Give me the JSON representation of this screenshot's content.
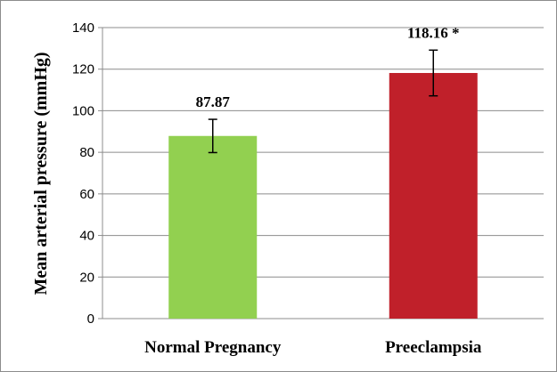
{
  "chart_data": {
    "type": "bar",
    "categories": [
      "Normal Pregnancy",
      "Preeclampsia"
    ],
    "values": [
      87.87,
      118.16
    ],
    "error": [
      8,
      11
    ],
    "data_labels": [
      "87.87",
      "118.16 *"
    ],
    "colors": [
      "#92d050",
      "#c0202a"
    ],
    "title": "",
    "xlabel": "",
    "ylabel": "Mean arterial pressure (mmHg)",
    "ylim": [
      0,
      140
    ],
    "yticks": [
      "0",
      "20",
      "40",
      "60",
      "80",
      "100",
      "120",
      "140"
    ],
    "grid": true,
    "legend": "none"
  }
}
